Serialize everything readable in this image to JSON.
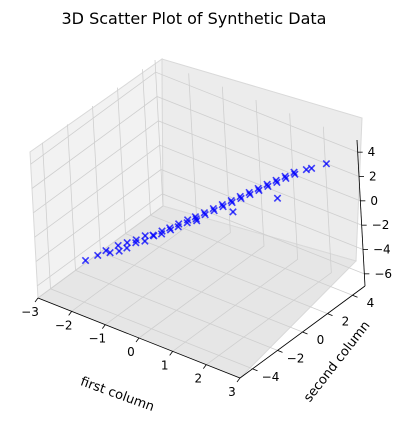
{
  "chart_data": {
    "type": "scatter3d",
    "title": "3D Scatter Plot of Synthetic Data",
    "xlabel": "first column",
    "ylabel": "second column",
    "zlabel": "",
    "xlim": [
      -3,
      3
    ],
    "ylim": [
      -5,
      5
    ],
    "zlim": [
      -7,
      5
    ],
    "x_ticks": [
      "−3",
      "−2",
      "−1",
      "0",
      "1",
      "2",
      "3"
    ],
    "y_ticks": [
      "−4",
      "−2",
      "0",
      "2",
      "4"
    ],
    "z_ticks": [
      "−6",
      "−4",
      "−2",
      "0",
      "2",
      "4"
    ],
    "marker": "x",
    "color": "#0000ff",
    "grid": true,
    "series": [
      {
        "points": [
          [
            -2.6,
            -2.2,
            -5.6
          ],
          [
            -2.3,
            -2.0,
            -5.0
          ],
          [
            -2.2,
            -1.6,
            -4.8
          ],
          [
            -2.0,
            -1.8,
            -4.6
          ],
          [
            -1.9,
            -1.4,
            -4.2
          ],
          [
            -1.8,
            -1.6,
            -4.4
          ],
          [
            -1.7,
            -1.2,
            -3.9
          ],
          [
            -1.6,
            -1.5,
            -4.0
          ],
          [
            -1.5,
            -1.0,
            -3.6
          ],
          [
            -1.4,
            -1.3,
            -3.5
          ],
          [
            -1.3,
            -0.8,
            -3.2
          ],
          [
            -1.2,
            -1.1,
            -3.3
          ],
          [
            -1.1,
            -0.7,
            -3.0
          ],
          [
            -1.0,
            -0.9,
            -2.8
          ],
          [
            -0.9,
            -0.5,
            -2.6
          ],
          [
            -0.8,
            -0.8,
            -2.5
          ],
          [
            -0.7,
            -0.4,
            -2.2
          ],
          [
            -0.6,
            -0.6,
            -2.1
          ],
          [
            -0.5,
            -0.2,
            -1.8
          ],
          [
            -0.4,
            -0.5,
            -1.7
          ],
          [
            -0.3,
            0.0,
            -1.4
          ],
          [
            -0.2,
            -0.3,
            -1.3
          ],
          [
            -0.1,
            0.1,
            -1.0
          ],
          [
            0.0,
            -0.1,
            -0.9
          ],
          [
            0.1,
            0.3,
            -0.6
          ],
          [
            0.2,
            0.1,
            -0.5
          ],
          [
            0.3,
            0.5,
            -0.2
          ],
          [
            0.4,
            0.3,
            -0.1
          ],
          [
            0.5,
            0.7,
            0.2
          ],
          [
            0.6,
            0.5,
            0.3
          ],
          [
            0.7,
            0.9,
            0.6
          ],
          [
            0.8,
            0.7,
            0.7
          ],
          [
            0.9,
            1.1,
            1.0
          ],
          [
            1.0,
            0.9,
            1.1
          ],
          [
            1.1,
            1.3,
            1.4
          ],
          [
            1.2,
            1.1,
            1.5
          ],
          [
            1.3,
            1.5,
            1.8
          ],
          [
            1.4,
            1.3,
            1.9
          ],
          [
            1.5,
            1.7,
            2.2
          ],
          [
            1.6,
            1.5,
            2.3
          ],
          [
            1.7,
            1.9,
            2.6
          ],
          [
            1.8,
            1.7,
            2.7
          ],
          [
            1.9,
            2.1,
            3.0
          ],
          [
            2.0,
            1.9,
            3.1
          ],
          [
            2.1,
            2.3,
            3.4
          ],
          [
            2.2,
            2.1,
            3.5
          ],
          [
            2.4,
            2.5,
            3.8
          ],
          [
            2.6,
            2.4,
            4.2
          ],
          [
            2.9,
            2.8,
            4.6
          ],
          [
            0.3,
            2.0,
            -1.6
          ],
          [
            1.2,
            3.2,
            -0.4
          ],
          [
            -0.5,
            1.2,
            -2.6
          ]
        ]
      }
    ]
  }
}
